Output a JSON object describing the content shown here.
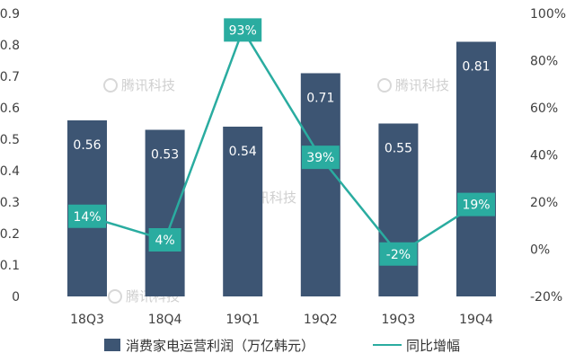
{
  "chart_data": {
    "type": "bar",
    "categories": [
      "18Q3",
      "18Q4",
      "19Q1",
      "19Q2",
      "19Q3",
      "19Q4"
    ],
    "series": [
      {
        "name": "消费家电运营利润（万亿韩元）",
        "kind": "bar",
        "axis": "left",
        "values": [
          0.56,
          0.53,
          0.54,
          0.71,
          0.55,
          0.81
        ],
        "labels": [
          "0.56",
          "0.53",
          "0.54",
          "0.71",
          "0.55",
          "0.81"
        ],
        "color": "#3d5573"
      },
      {
        "name": "同比增幅",
        "kind": "line",
        "axis": "right",
        "values": [
          14,
          4,
          93,
          39,
          -2,
          19
        ],
        "labels": [
          "14%",
          "4%",
          "93%",
          "39%",
          "-2%",
          "19%"
        ],
        "color": "#2aaca0"
      }
    ],
    "y_left": {
      "min": 0,
      "max": 0.9,
      "ticks": [
        0,
        0.1,
        0.2,
        0.3,
        0.4,
        0.5,
        0.6,
        0.7,
        0.8,
        0.9
      ],
      "tick_labels": [
        "0",
        "0.1",
        "0.2",
        "0.3",
        "0.4",
        "0.5",
        "0.6",
        "0.7",
        "0.8",
        "0.9"
      ]
    },
    "y_right": {
      "min": -20,
      "max": 100,
      "ticks": [
        -20,
        0,
        20,
        40,
        60,
        80,
        100
      ],
      "tick_labels": [
        "-20%",
        "0%",
        "20%",
        "40%",
        "60%",
        "80%",
        "100%"
      ]
    },
    "legend_position": "bottom",
    "grid": false
  },
  "watermark": "腾讯科技"
}
